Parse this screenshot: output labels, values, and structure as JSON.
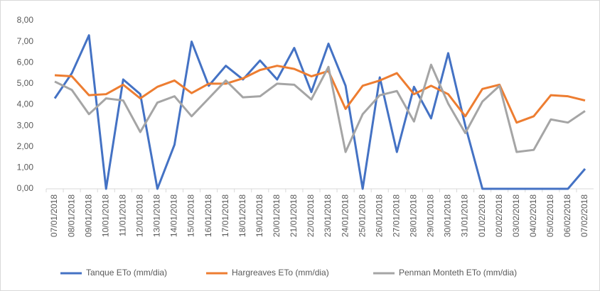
{
  "chart_data": {
    "type": "line",
    "categories": [
      "07/01/2018",
      "08/01/2018",
      "09/01/2018",
      "10/01/2018",
      "11/01/2018",
      "12/01/2018",
      "13/01/2018",
      "14/01/2018",
      "15/01/2018",
      "16/01/2018",
      "17/01/2018",
      "18/01/2018",
      "19/01/2018",
      "20/01/2018",
      "21/01/2018",
      "22/01/2018",
      "23/01/2018",
      "24/01/2018",
      "25/01/2018",
      "26/01/2018",
      "27/01/2018",
      "28/01/2018",
      "29/01/2018",
      "30/01/2018",
      "31/01/2018",
      "01/02/2018",
      "02/02/2018",
      "03/02/2018",
      "04/02/2018",
      "05/02/2018",
      "06/02/2018",
      "07/02/2018"
    ],
    "series": [
      {
        "name": "Tanque ETo (mm/dia)",
        "color": "#4472c4",
        "values": [
          4.3,
          5.5,
          7.3,
          0,
          5.2,
          4.5,
          0,
          2.1,
          7.0,
          4.9,
          5.85,
          5.2,
          6.1,
          5.2,
          6.7,
          4.6,
          6.9,
          4.9,
          0,
          5.3,
          1.75,
          4.85,
          3.35,
          6.45,
          3.0,
          0,
          0,
          0,
          0,
          0,
          0,
          0.95
        ]
      },
      {
        "name": "Hargreaves ETo (mm/dia)",
        "color": "#ed7d31",
        "values": [
          5.4,
          5.35,
          4.45,
          4.5,
          4.95,
          4.3,
          4.85,
          5.15,
          4.55,
          5.0,
          5.0,
          5.25,
          5.65,
          5.85,
          5.7,
          5.35,
          5.6,
          3.8,
          4.9,
          5.15,
          5.5,
          4.5,
          4.9,
          4.5,
          3.45,
          4.75,
          4.95,
          3.15,
          3.45,
          4.45,
          4.4,
          4.2
        ]
      },
      {
        "name": "Penman Monteth ETo (mm/dia)",
        "color": "#a5a5a5",
        "values": [
          5.1,
          4.7,
          3.55,
          4.3,
          4.2,
          2.7,
          4.1,
          4.4,
          3.45,
          4.3,
          5.15,
          4.35,
          4.4,
          5.0,
          4.95,
          4.25,
          5.8,
          1.75,
          3.55,
          4.45,
          4.65,
          3.2,
          5.9,
          4.05,
          2.65,
          4.15,
          4.9,
          1.75,
          1.85,
          3.3,
          3.15,
          3.7
        ]
      }
    ],
    "ylim": [
      0,
      8
    ],
    "yticks": [
      {
        "value": 0,
        "label": "0,00"
      },
      {
        "value": 1,
        "label": "1,00"
      },
      {
        "value": 2,
        "label": "2,00"
      },
      {
        "value": 3,
        "label": "3,00"
      },
      {
        "value": 4,
        "label": "4,00"
      },
      {
        "value": 5,
        "label": "5,00"
      },
      {
        "value": 6,
        "label": "6,00"
      },
      {
        "value": 7,
        "label": "7,00"
      },
      {
        "value": 8,
        "label": "8,00"
      }
    ],
    "grid": false,
    "legend": "bottom"
  }
}
